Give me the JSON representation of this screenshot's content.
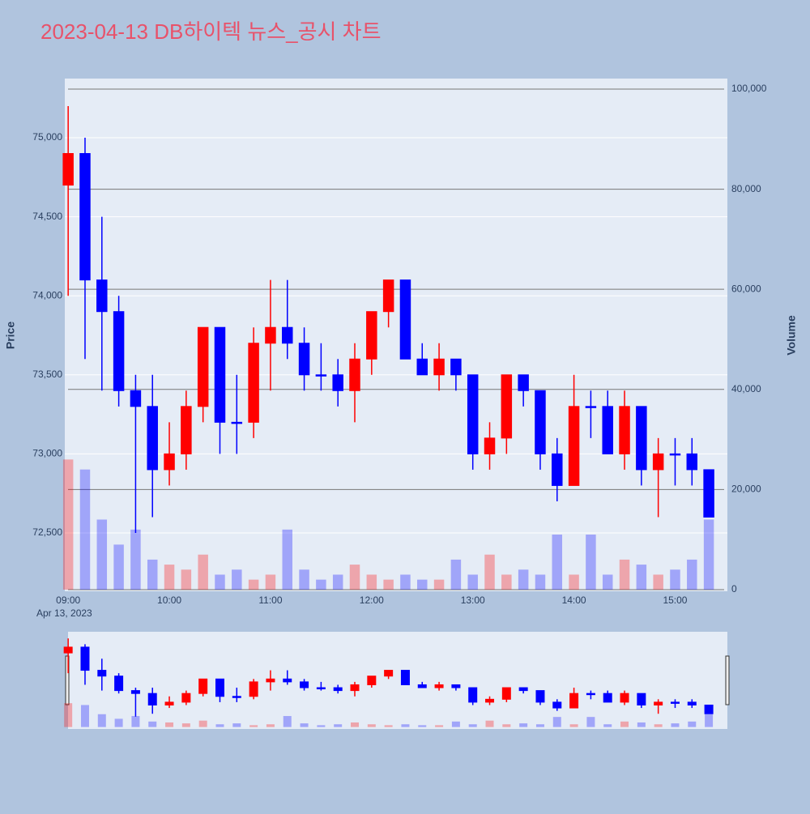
{
  "chart_data": {
    "type": "candlestick",
    "title": "2023-04-13 DB하이텍 뉴스_공시 차트",
    "y_label": "Price",
    "y2_label": "Volume",
    "x_date_label": "Apr 13, 2023",
    "x": [
      "09:00",
      "09:10",
      "09:20",
      "09:30",
      "09:40",
      "09:50",
      "10:00",
      "10:10",
      "10:20",
      "10:30",
      "10:40",
      "10:50",
      "11:00",
      "11:10",
      "11:20",
      "11:30",
      "11:40",
      "11:50",
      "12:00",
      "12:10",
      "12:20",
      "12:30",
      "12:40",
      "12:50",
      "13:00",
      "13:10",
      "13:20",
      "13:30",
      "13:40",
      "13:50",
      "14:00",
      "14:10",
      "14:20",
      "14:30",
      "14:40",
      "14:50",
      "15:00",
      "15:10",
      "15:20"
    ],
    "open": [
      74700,
      74900,
      74100,
      73900,
      73400,
      73300,
      72900,
      73000,
      73300,
      73800,
      73200,
      73200,
      73700,
      73800,
      73700,
      73500,
      73500,
      73400,
      73600,
      73900,
      74100,
      73600,
      73500,
      73600,
      73500,
      73000,
      73100,
      73500,
      73400,
      73000,
      72800,
      73300,
      73300,
      73000,
      73300,
      72900,
      73000,
      73000,
      72900
    ],
    "high": [
      75200,
      75000,
      74500,
      74000,
      73500,
      73500,
      73200,
      73400,
      73800,
      73800,
      73500,
      73800,
      74100,
      74100,
      73800,
      73700,
      73600,
      73700,
      73900,
      74100,
      74100,
      73700,
      73700,
      73600,
      73500,
      73200,
      73500,
      73500,
      73400,
      73100,
      73500,
      73400,
      73400,
      73400,
      73300,
      73100,
      73100,
      73100,
      72900
    ],
    "low": [
      74000,
      73600,
      73400,
      73300,
      72500,
      72600,
      72800,
      72900,
      73200,
      73000,
      73000,
      73100,
      73400,
      73600,
      73400,
      73400,
      73300,
      73200,
      73500,
      73800,
      73600,
      73500,
      73400,
      73400,
      72900,
      72900,
      73000,
      73300,
      72900,
      72700,
      72800,
      73100,
      73000,
      72900,
      72800,
      72600,
      72800,
      72800,
      72600
    ],
    "close": [
      74900,
      74100,
      73900,
      73400,
      73300,
      72900,
      73000,
      73300,
      73800,
      73200,
      73200,
      73700,
      73800,
      73700,
      73500,
      73500,
      73400,
      73600,
      73900,
      74100,
      73600,
      73500,
      73600,
      73500,
      73000,
      73100,
      73500,
      73400,
      73000,
      72800,
      73300,
      73300,
      73000,
      73300,
      72900,
      73000,
      73000,
      72900,
      72600
    ],
    "volume": [
      26000,
      24000,
      14000,
      9000,
      12000,
      6000,
      5000,
      4000,
      7000,
      3000,
      4000,
      2000,
      3000,
      12000,
      4000,
      2000,
      3000,
      5000,
      3000,
      2000,
      3000,
      2000,
      2000,
      6000,
      3000,
      7000,
      3000,
      4000,
      3000,
      11000,
      3000,
      11000,
      3000,
      6000,
      5000,
      3000,
      4000,
      6000,
      14000
    ],
    "increasing_color": "#ff0000",
    "decreasing_color": "#0000ff",
    "xlim": [
      "08:58",
      "15:31"
    ],
    "xticks": [
      "09:00",
      "10:00",
      "11:00",
      "12:00",
      "13:00",
      "14:00",
      "15:00"
    ],
    "ylim": [
      72131,
      75374
    ],
    "yticks": [
      {
        "value": 72500,
        "label": "72,500"
      },
      {
        "value": 73000,
        "label": "73,000"
      },
      {
        "value": 73500,
        "label": "73,500"
      },
      {
        "value": 74000,
        "label": "74,000"
      },
      {
        "value": 74500,
        "label": "74,500"
      },
      {
        "value": 75000,
        "label": "75,000"
      }
    ],
    "y2lim": [
      -324,
      102100
    ],
    "y2ticks": [
      0,
      {
        "value": 20000,
        "label": "20,000"
      },
      {
        "value": 40000,
        "label": "40,000"
      },
      {
        "value": 60000,
        "label": "60,000"
      },
      {
        "value": 80000,
        "label": "80,000"
      },
      {
        "value": 100000,
        "label": "100,000"
      }
    ],
    "grid": true
  }
}
